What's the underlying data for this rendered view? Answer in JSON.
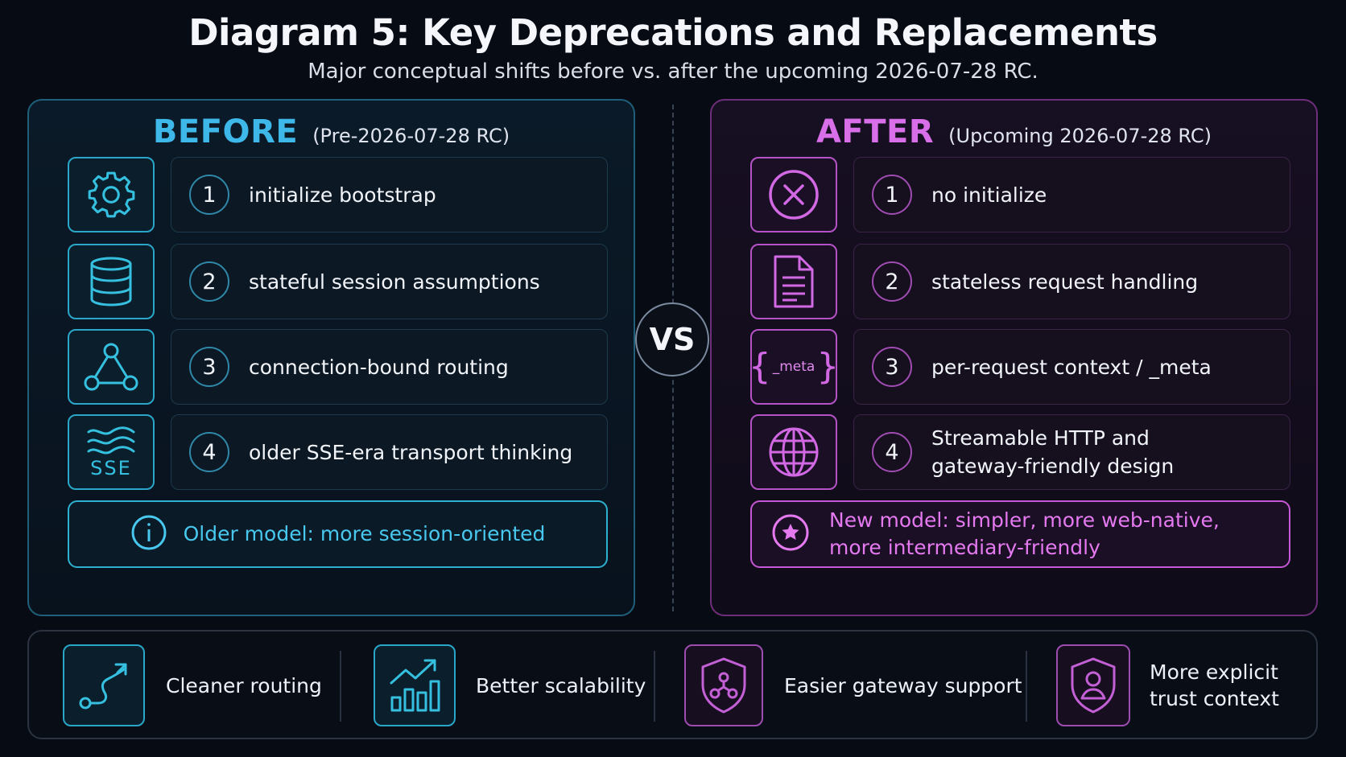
{
  "title": "Diagram 5: Key Deprecations and Replacements",
  "subtitle": "Major conceptual shifts before vs. after the upcoming 2026-07-28 RC.",
  "before": {
    "heading": "BEFORE",
    "qualifier": "(Pre-2026-07-28 RC)",
    "items": [
      {
        "num": "1",
        "icon": "gear-icon",
        "text": "initialize bootstrap"
      },
      {
        "num": "2",
        "icon": "database-icon",
        "text": "stateful session assumptions"
      },
      {
        "num": "3",
        "icon": "network-nodes-icon",
        "text": "connection-bound routing"
      },
      {
        "num": "4",
        "icon": "sse-waves-icon",
        "icon_label": "SSE",
        "text": "older SSE-era transport thinking"
      }
    ],
    "note": {
      "icon": "info-icon",
      "text": "Older model: more session-oriented"
    }
  },
  "vs_label": "VS",
  "after": {
    "heading": "AFTER",
    "qualifier": "(Upcoming 2026-07-28 RC)",
    "items": [
      {
        "num": "1",
        "icon": "x-circle-icon",
        "text": "no initialize"
      },
      {
        "num": "2",
        "icon": "document-icon",
        "text": "stateless request handling"
      },
      {
        "num": "3",
        "icon": "meta-braces-icon",
        "icon_label": "_meta",
        "text": "per-request context / _meta"
      },
      {
        "num": "4",
        "icon": "globe-icon",
        "text_line1": "Streamable HTTP and",
        "text_line2": "gateway-friendly design"
      }
    ],
    "note": {
      "icon": "star-circle-icon",
      "line1": "New model: simpler, more web-native,",
      "line2": "more intermediary-friendly"
    }
  },
  "benefits": [
    {
      "icon": "route-icon",
      "text": "Cleaner routing"
    },
    {
      "icon": "bar-chart-growth-icon",
      "text": "Better scalability"
    },
    {
      "icon": "shield-network-icon",
      "text": "Easier gateway support"
    },
    {
      "icon": "shield-user-icon",
      "line1": "More explicit",
      "line2": "trust context"
    }
  ],
  "colors": {
    "before_accent": "#3db8e8",
    "after_accent": "#d86ee8",
    "background": "#070b14"
  }
}
